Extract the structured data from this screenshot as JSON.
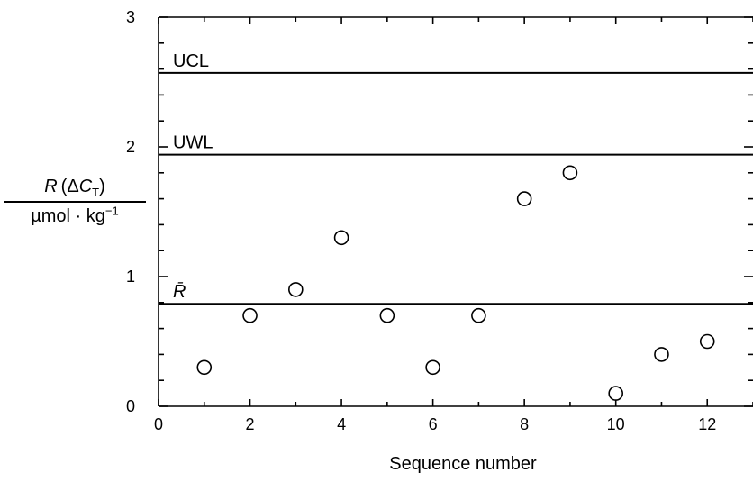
{
  "chart_data": {
    "type": "scatter",
    "title": "",
    "xlabel": "Sequence number",
    "ylabel": {
      "numerator": {
        "symbol": "R",
        "open": "(Δ",
        "var": "C",
        "sub": "T",
        "close": ")"
      },
      "denominator": {
        "unit": "µmol · kg",
        "exp": "−1"
      }
    },
    "xlim": [
      0,
      13
    ],
    "ylim": [
      0,
      3
    ],
    "xticks": [
      0,
      2,
      4,
      6,
      8,
      10,
      12
    ],
    "yticks": [
      0,
      1,
      2,
      3
    ],
    "grid": false,
    "marker": "open-circle",
    "series": [
      {
        "x": [
          1,
          2,
          3,
          4,
          5,
          6,
          7,
          8,
          9,
          10,
          11,
          12
        ],
        "y": [
          0.3,
          0.7,
          0.9,
          1.3,
          0.7,
          0.3,
          0.7,
          1.6,
          1.8,
          0.1,
          0.4,
          0.5
        ]
      }
    ],
    "reference_lines": [
      {
        "label": "UCL",
        "y": 2.57
      },
      {
        "label": "UWL",
        "y": 1.94
      },
      {
        "label": "R̄",
        "y": 0.79
      }
    ]
  }
}
